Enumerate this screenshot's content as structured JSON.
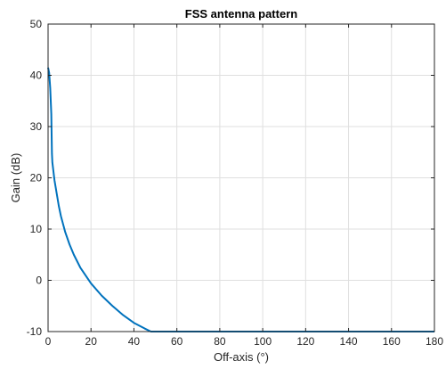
{
  "chart_data": {
    "type": "line",
    "title": "FSS antenna pattern",
    "xlabel": "Off-axis (°)",
    "ylabel": "Gain (dB)",
    "xlim": [
      0,
      180
    ],
    "ylim": [
      -10,
      50
    ],
    "xticks": [
      0,
      20,
      40,
      60,
      80,
      100,
      120,
      140,
      160,
      180
    ],
    "yticks": [
      -10,
      0,
      10,
      20,
      30,
      40,
      50
    ],
    "grid": true,
    "box": true,
    "series": [
      {
        "color": "#0072bd",
        "x": [
          0,
          0.5,
          1,
          1.5,
          1.8,
          2,
          3,
          4,
          5,
          6,
          8,
          10,
          12,
          15,
          20,
          25,
          30,
          35,
          40,
          45,
          47.9,
          50,
          60,
          80,
          100,
          120,
          140,
          160,
          180
        ],
        "y": [
          41.5,
          40.5,
          37.5,
          32.5,
          24.7,
          23.0,
          19.5,
          17.0,
          14.5,
          12.5,
          9.4,
          7.0,
          5.0,
          2.5,
          -0.6,
          -3.0,
          -5.0,
          -6.8,
          -8.3,
          -9.4,
          -10.0,
          -10.0,
          -10.0,
          -10.0,
          -10.0,
          -10.0,
          -10.0,
          -10.0,
          -10.0
        ]
      }
    ]
  }
}
